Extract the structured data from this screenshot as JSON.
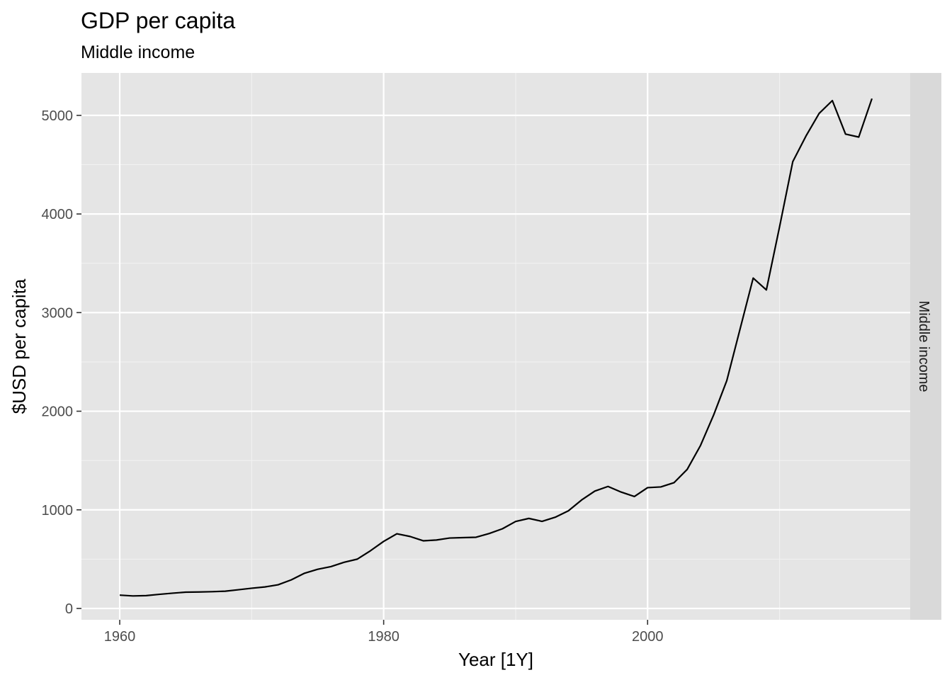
{
  "chart_data": {
    "type": "line",
    "title": "GDP per capita",
    "subtitle": "Middle income",
    "xlabel": "Year [1Y]",
    "ylabel": "$USD per capita",
    "facet_label": "Middle income",
    "xlim": [
      1957.1,
      2019.9
    ],
    "ylim": [
      -115,
      5430
    ],
    "x_ticks": [
      1960,
      1980,
      2000
    ],
    "x_tick_labels": [
      "1960",
      "1980",
      "2000"
    ],
    "y_ticks": [
      0,
      1000,
      2000,
      3000,
      4000,
      5000
    ],
    "y_tick_labels": [
      "0",
      "1000",
      "2000",
      "3000",
      "4000",
      "5000"
    ],
    "grid": true,
    "colors": {
      "panel": "#e5e5e5",
      "grid": "#ffffff",
      "strip": "#d9d9d9",
      "line": "#000000"
    },
    "series": [
      {
        "x": [
          1960,
          1961,
          1962,
          1963,
          1964,
          1965,
          1966,
          1967,
          1968,
          1969,
          1970,
          1971,
          1972,
          1973,
          1974,
          1975,
          1976,
          1977,
          1978,
          1979,
          1980,
          1981,
          1982,
          1983,
          1984,
          1985,
          1986,
          1987,
          1988,
          1989,
          1990,
          1991,
          1992,
          1993,
          1994,
          1995,
          1996,
          1997,
          1998,
          1999,
          2000,
          2001,
          2002,
          2003,
          2004,
          2005,
          2006,
          2007,
          2008,
          2009,
          2010,
          2011,
          2012,
          2013,
          2014,
          2015,
          2016,
          2017
        ],
        "values": [
          135,
          127,
          130,
          143,
          155,
          165,
          167,
          170,
          175,
          190,
          205,
          218,
          240,
          290,
          357,
          397,
          424,
          468,
          500,
          585,
          680,
          757,
          730,
          686,
          694,
          714,
          718,
          722,
          760,
          808,
          882,
          913,
          883,
          925,
          990,
          1100,
          1190,
          1237,
          1180,
          1135,
          1225,
          1232,
          1275,
          1410,
          1650,
          1960,
          2310,
          2830,
          3350,
          3230,
          3870,
          4530,
          4790,
          5020,
          5150,
          4810,
          4780,
          5170
        ]
      }
    ]
  }
}
